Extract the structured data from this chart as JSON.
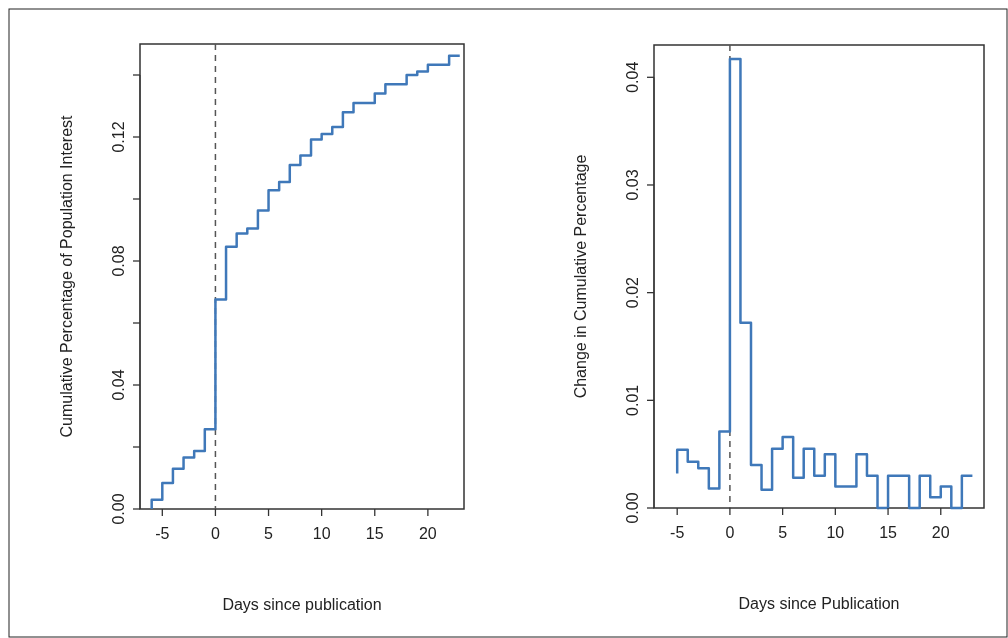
{
  "chart_data": [
    {
      "type": "step",
      "xlabel": "Days since publication",
      "ylabel": "Cumulative Percentage of Population Interest",
      "x": [
        -6,
        -6,
        -5,
        -4,
        -3,
        -2,
        -1,
        0,
        1,
        2,
        3,
        4,
        5,
        6,
        7,
        8,
        9,
        10,
        11,
        12,
        13,
        14,
        15,
        16,
        17,
        18,
        19,
        20,
        21,
        22,
        23
      ],
      "series": [
        {
          "color": "#3f78b9",
          "values": [
            0,
            0.003,
            0.0084,
            0.013,
            0.0166,
            0.0187,
            0.0257,
            0.0676,
            0.0846,
            0.0889,
            0.0905,
            0.0963,
            0.1028,
            0.1055,
            0.111,
            0.114,
            0.1192,
            0.121,
            0.1232,
            0.128,
            0.131,
            0.131,
            0.134,
            0.137,
            0.137,
            0.14,
            0.1411,
            0.1433,
            0.1433,
            0.1462,
            0.1462
          ]
        }
      ],
      "xlim": [
        -7.1,
        23.4
      ],
      "ylim": [
        0,
        0.15
      ],
      "xticks": [
        -5,
        0,
        5,
        10,
        15,
        20
      ],
      "yticks": [
        {
          "value": 0,
          "label": "0.00"
        },
        {
          "value": 0.02,
          "label": null
        },
        0.04,
        {
          "value": 0.06,
          "label": null
        },
        0.08,
        {
          "value": 0.1,
          "label": null
        },
        0.12,
        {
          "value": 0.14,
          "label": null
        }
      ],
      "ref_lines": [
        {
          "axis": "x",
          "value": 0,
          "color": "#555555",
          "line_style": "dashed"
        }
      ]
    },
    {
      "type": "step",
      "xlabel": "Days since Publication",
      "ylabel": "Change in Cumulative Percentage",
      "x": [
        -5,
        -5,
        -4,
        -3,
        -2,
        -1,
        0,
        1,
        2,
        3,
        4,
        5,
        6,
        7,
        8,
        9,
        10,
        11,
        12,
        13,
        14,
        15,
        16,
        17,
        18,
        19,
        20,
        21,
        22,
        23
      ],
      "series": [
        {
          "color": "#3f78b9",
          "values": [
            0.0032,
            0.0054,
            0.0043,
            0.0037,
            0.0018,
            0.0071,
            0.0417,
            0.0172,
            0.004,
            0.0017,
            0.0055,
            0.0066,
            0.0028,
            0.0055,
            0.003,
            0.005,
            0.002,
            0.002,
            0.005,
            0.003,
            0,
            0.003,
            0.003,
            0,
            0.003,
            0.001,
            0.002,
            0,
            0.003,
            0.003
          ]
        }
      ],
      "xlim": [
        -7.2,
        24.1
      ],
      "ylim": [
        0,
        0.043
      ],
      "xticks": [
        -5,
        0,
        5,
        10,
        15,
        20
      ],
      "yticks": [
        {
          "value": 0,
          "label": "0.00"
        },
        0.01,
        0.02,
        0.03,
        0.04
      ],
      "ref_lines": [
        {
          "axis": "x",
          "value": 0,
          "color": "#555555",
          "line_style": "dashed"
        }
      ]
    }
  ]
}
